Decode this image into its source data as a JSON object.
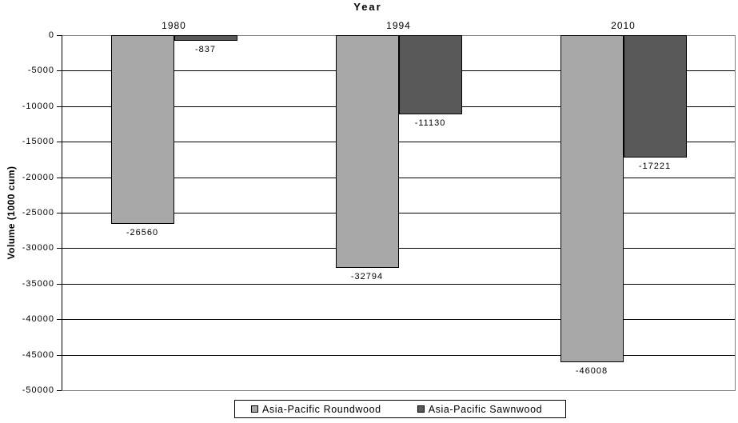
{
  "chart_data": {
    "type": "bar",
    "title": "Year",
    "ylabel": "Volume (1000 cum)",
    "categories": [
      "1980",
      "1994",
      "2010"
    ],
    "series": [
      {
        "name": "Asia-Pacific Roundwood",
        "color": "#A8A8A8",
        "values": [
          -26560,
          -32794,
          -46008
        ],
        "data_labels": [
          "-26560",
          "-32794",
          "-46008"
        ]
      },
      {
        "name": "Asia-Pacific Sawnwood",
        "color": "#595959",
        "values": [
          -837,
          -11130,
          -17221
        ],
        "data_labels": [
          "-837",
          "-11130",
          "-17221"
        ]
      }
    ],
    "ylim": [
      -50000,
      0
    ],
    "ytick_step": 5000,
    "ytick_labels": [
      "0",
      "-5000",
      "-10000",
      "-15000",
      "-20000",
      "-25000",
      "-30000",
      "-35000",
      "-40000",
      "-45000",
      "-50000"
    ],
    "grid": true,
    "legend_position": "bottom",
    "colors": {
      "gridline": "#000000",
      "boundary_gridline": "#808080",
      "axis_line": "#000000",
      "plot_border": "#808080",
      "bar_border": "#000000",
      "background": "#FFFFFF",
      "text": "#000000"
    }
  }
}
